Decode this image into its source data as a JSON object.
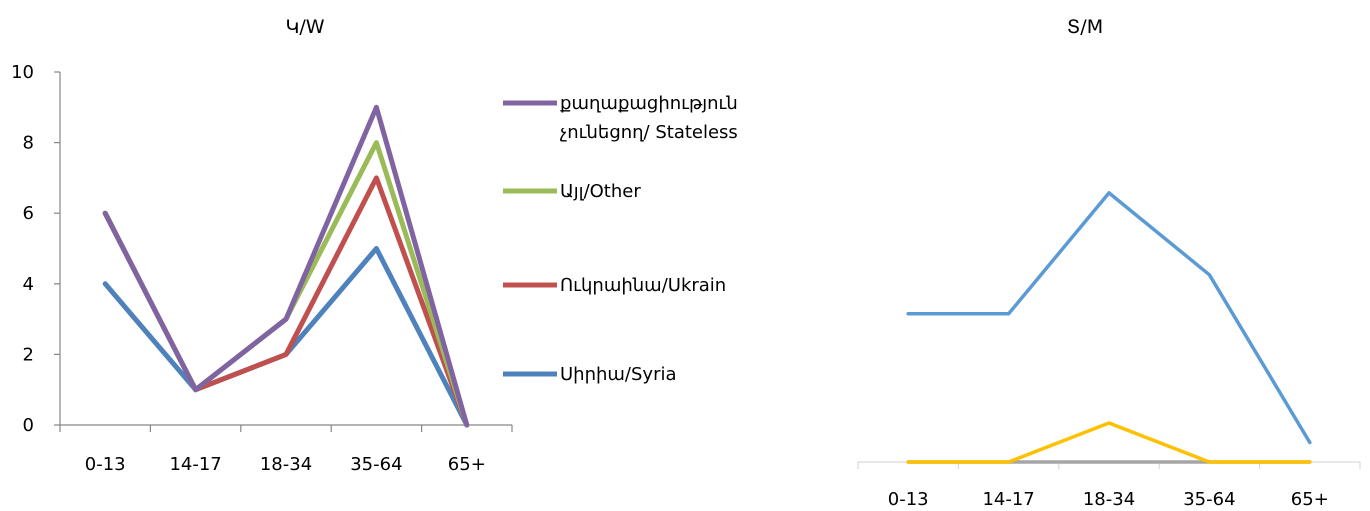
{
  "chart_data": [
    {
      "type": "line",
      "title": "Կ/W",
      "xlabel": "",
      "ylabel": "",
      "categories": [
        "0-13",
        "14-17",
        "18-34",
        "35-64",
        "65+"
      ],
      "ylim": [
        0,
        10
      ],
      "yticks": [
        "0",
        "2",
        "4",
        "6",
        "8",
        "10"
      ],
      "grid": false,
      "legend_position": "right",
      "series": [
        {
          "name": "Սիրիա/Syria",
          "values": [
            4,
            1,
            2,
            5,
            0
          ],
          "color": "#4F81BD"
        },
        {
          "name": "Ուկրաինա/Ukrain",
          "values": [
            6,
            1,
            2,
            7,
            0
          ],
          "color": "#C0504D"
        },
        {
          "name": "Այլ/Other",
          "values": [
            6,
            1,
            3,
            8,
            0
          ],
          "color": "#9BBB59"
        },
        {
          "name_lines": [
            "քաղաքացիություն",
            "չունեցող/ Stateless"
          ],
          "name": "քաղաքացիություն չունեցող/ Stateless",
          "values": [
            6,
            1,
            3,
            9,
            0
          ],
          "color": "#8064A2"
        }
      ]
    },
    {
      "type": "line",
      "title": "Տ/M",
      "xlabel": "",
      "ylabel": "",
      "categories": [
        "0-13",
        "14-17",
        "18-34",
        "35-64",
        "65+"
      ],
      "ylim": [
        0,
        10
      ],
      "grid": false,
      "series": [
        {
          "values": [
            0,
            0,
            0,
            0,
            0
          ],
          "color": "#A5A5A5"
        },
        {
          "values": [
            0,
            0,
            1,
            0,
            0
          ],
          "color": "#FFC000"
        },
        {
          "values": [
            3.8,
            3.8,
            6.9,
            4.8,
            0.5
          ],
          "color": "#5B9BD5"
        }
      ]
    }
  ]
}
